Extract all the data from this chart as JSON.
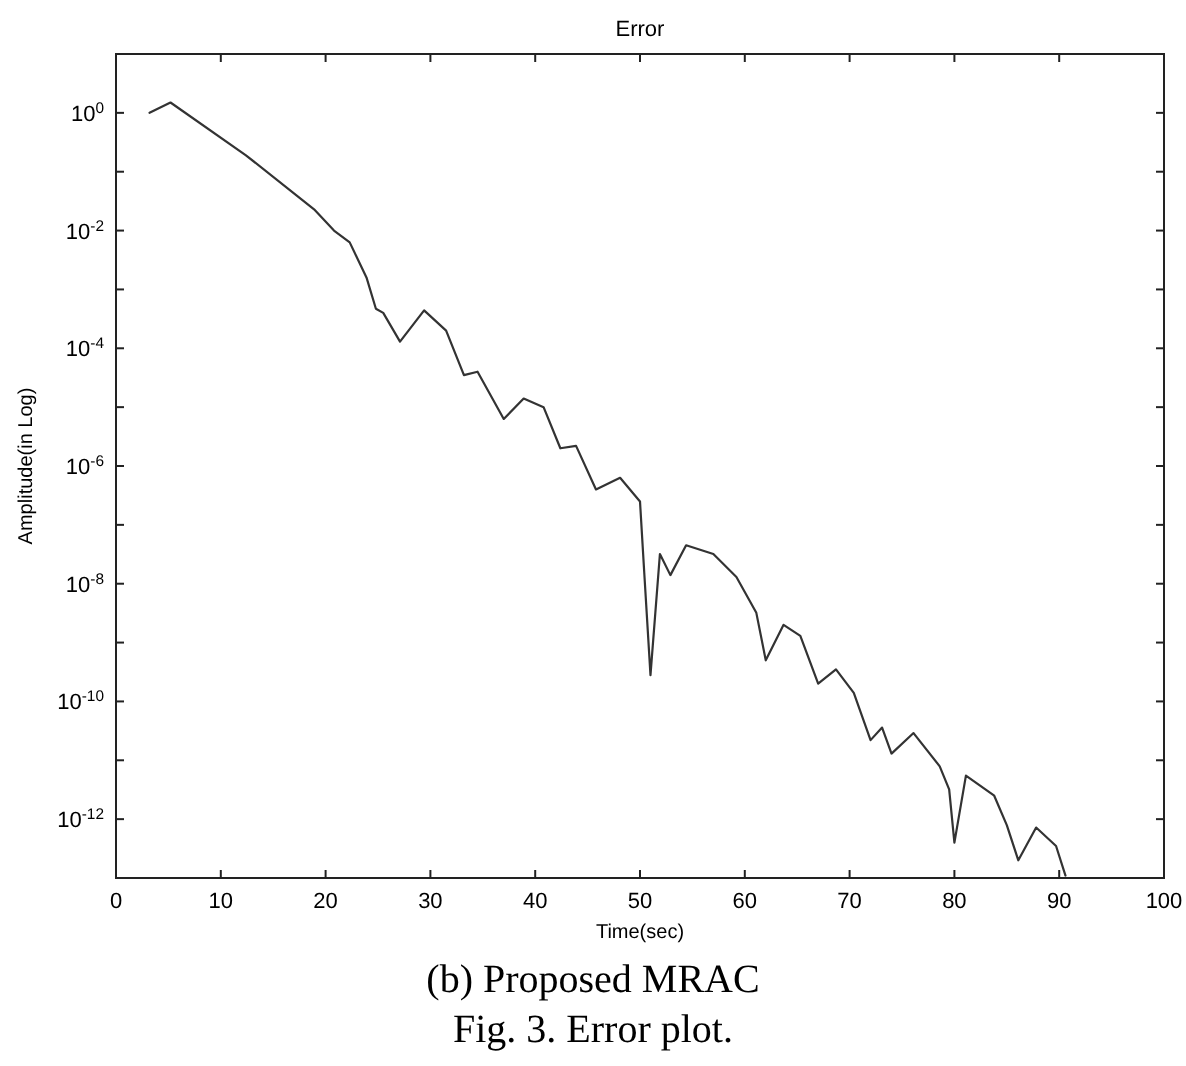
{
  "chart_data": {
    "type": "line",
    "title": "Error",
    "xlabel": "Time(sec)",
    "ylabel": "Amplitude(in Log)",
    "log": true,
    "grid": false,
    "marker": "none",
    "line_style": "solid",
    "annotations": [
      "(b) Proposed MRAC",
      "Fig. 3. Error plot."
    ],
    "xlim": [
      0,
      100
    ],
    "xticks": [
      0,
      10,
      20,
      30,
      40,
      50,
      60,
      70,
      80,
      90,
      100
    ],
    "ylim": [
      1e-13,
      10
    ],
    "yticks": [
      {
        "value": 1,
        "label": "10$^{0}$"
      },
      {
        "value": 0.1,
        "label": null
      },
      {
        "value": 0.01,
        "label": "10$^{-2}$"
      },
      {
        "value": 0.001,
        "label": null
      },
      {
        "value": 0.0001,
        "label": "10$^{-4}$"
      },
      {
        "value": 1e-05,
        "label": null
      },
      {
        "value": 1e-06,
        "label": "10$^{-6}$"
      },
      {
        "value": 1e-07,
        "label": null
      },
      {
        "value": 1e-08,
        "label": "10$^{-8}$"
      },
      {
        "value": 1e-09,
        "label": null
      },
      {
        "value": 1e-10,
        "label": "10$^{-10}$"
      },
      {
        "value": 1e-11,
        "label": null
      },
      {
        "value": 1e-12,
        "label": "10$^{-12}$"
      }
    ],
    "series": [
      {
        "color": "#333333",
        "x": [
          3.2,
          5.2,
          12.4,
          18.9,
          20.8,
          22.3,
          23.9,
          24.8,
          25.5,
          27.1,
          29.4,
          31.5,
          33.2,
          34.5,
          37,
          38.9,
          40.8,
          42.4,
          43.9,
          45.8,
          48.1,
          50,
          50.4,
          51,
          51.9,
          52.9,
          54.4,
          57,
          59.2,
          61.1,
          62,
          63.7,
          65.3,
          67,
          68.7,
          70.4,
          72,
          73.1,
          74,
          76.1,
          78.6,
          79.5,
          80,
          81.1,
          83.8,
          85,
          86.1,
          87.8,
          89.7,
          90.6
        ],
        "values": [
          1,
          1.5,
          0.19,
          0.023,
          0.01,
          0.0063,
          0.0016,
          0.00047,
          0.0004,
          0.00013,
          0.00044,
          0.0002,
          3.5e-05,
          4e-05,
          6.3e-06,
          1.4e-05,
          1e-05,
          2e-06,
          2.2e-06,
          4e-07,
          6.3e-07,
          2.5e-07,
          1.6e-08,
          2.8e-10,
          3.2e-08,
          1.4e-08,
          4.5e-08,
          3.2e-08,
          1.3e-08,
          3.2e-09,
          5e-10,
          2e-09,
          1.3e-09,
          2e-10,
          3.5e-10,
          1.4e-10,
          2.2e-11,
          3.6e-11,
          1.3e-11,
          2.9e-11,
          7.9e-12,
          3.2e-12,
          4e-13,
          5.5e-12,
          2.5e-12,
          7.9e-13,
          2e-13,
          7.2e-13,
          3.5e-13,
          1.1e-13
        ]
      }
    ]
  }
}
